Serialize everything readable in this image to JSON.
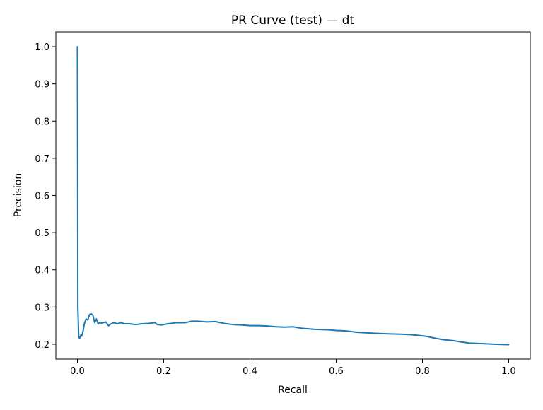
{
  "chart_data": {
    "type": "line",
    "title": "PR Curve (test) — dt",
    "xlabel": "Recall",
    "ylabel": "Precision",
    "xlim": [
      -0.05,
      1.05
    ],
    "ylim": [
      0.16,
      1.04
    ],
    "grid": false,
    "x_ticks": [
      {
        "value": 0.0,
        "label": "0.0"
      },
      {
        "value": 0.2,
        "label": "0.2"
      },
      {
        "value": 0.4,
        "label": "0.4"
      },
      {
        "value": 0.6,
        "label": "0.6"
      },
      {
        "value": 0.8,
        "label": "0.8"
      },
      {
        "value": 1.0,
        "label": "1.0"
      }
    ],
    "y_ticks": [
      {
        "value": 0.2,
        "label": "0.2"
      },
      {
        "value": 0.3,
        "label": "0.3"
      },
      {
        "value": 0.4,
        "label": "0.4"
      },
      {
        "value": 0.5,
        "label": "0.5"
      },
      {
        "value": 0.6,
        "label": "0.6"
      },
      {
        "value": 0.7,
        "label": "0.7"
      },
      {
        "value": 0.8,
        "label": "0.8"
      },
      {
        "value": 0.9,
        "label": "0.9"
      },
      {
        "value": 1.0,
        "label": "1.0"
      }
    ],
    "series": [
      {
        "color": "#1f77b4",
        "x": [
          0.0,
          0.001,
          0.002,
          0.003,
          0.005,
          0.008,
          0.01,
          0.013,
          0.016,
          0.02,
          0.024,
          0.028,
          0.032,
          0.036,
          0.04,
          0.044,
          0.048,
          0.052,
          0.056,
          0.06,
          0.066,
          0.072,
          0.078,
          0.085,
          0.092,
          0.1,
          0.11,
          0.12,
          0.135,
          0.15,
          0.165,
          0.18,
          0.185,
          0.195,
          0.21,
          0.23,
          0.25,
          0.265,
          0.28,
          0.3,
          0.32,
          0.34,
          0.36,
          0.38,
          0.4,
          0.42,
          0.44,
          0.46,
          0.48,
          0.5,
          0.52,
          0.55,
          0.58,
          0.6,
          0.62,
          0.65,
          0.68,
          0.7,
          0.72,
          0.75,
          0.77,
          0.79,
          0.81,
          0.83,
          0.85,
          0.87,
          0.89,
          0.91,
          0.93,
          0.95,
          0.97,
          1.0
        ],
        "y": [
          1.0,
          0.3,
          0.26,
          0.22,
          0.215,
          0.225,
          0.222,
          0.235,
          0.255,
          0.268,
          0.265,
          0.28,
          0.282,
          0.278,
          0.258,
          0.268,
          0.255,
          0.258,
          0.257,
          0.258,
          0.26,
          0.25,
          0.255,
          0.258,
          0.255,
          0.258,
          0.255,
          0.255,
          0.253,
          0.255,
          0.256,
          0.258,
          0.253,
          0.252,
          0.255,
          0.258,
          0.258,
          0.262,
          0.262,
          0.26,
          0.261,
          0.256,
          0.253,
          0.252,
          0.25,
          0.25,
          0.249,
          0.247,
          0.246,
          0.247,
          0.243,
          0.24,
          0.239,
          0.237,
          0.236,
          0.232,
          0.23,
          0.229,
          0.228,
          0.227,
          0.226,
          0.224,
          0.221,
          0.216,
          0.212,
          0.21,
          0.206,
          0.203,
          0.202,
          0.201,
          0.2,
          0.199
        ]
      }
    ]
  }
}
